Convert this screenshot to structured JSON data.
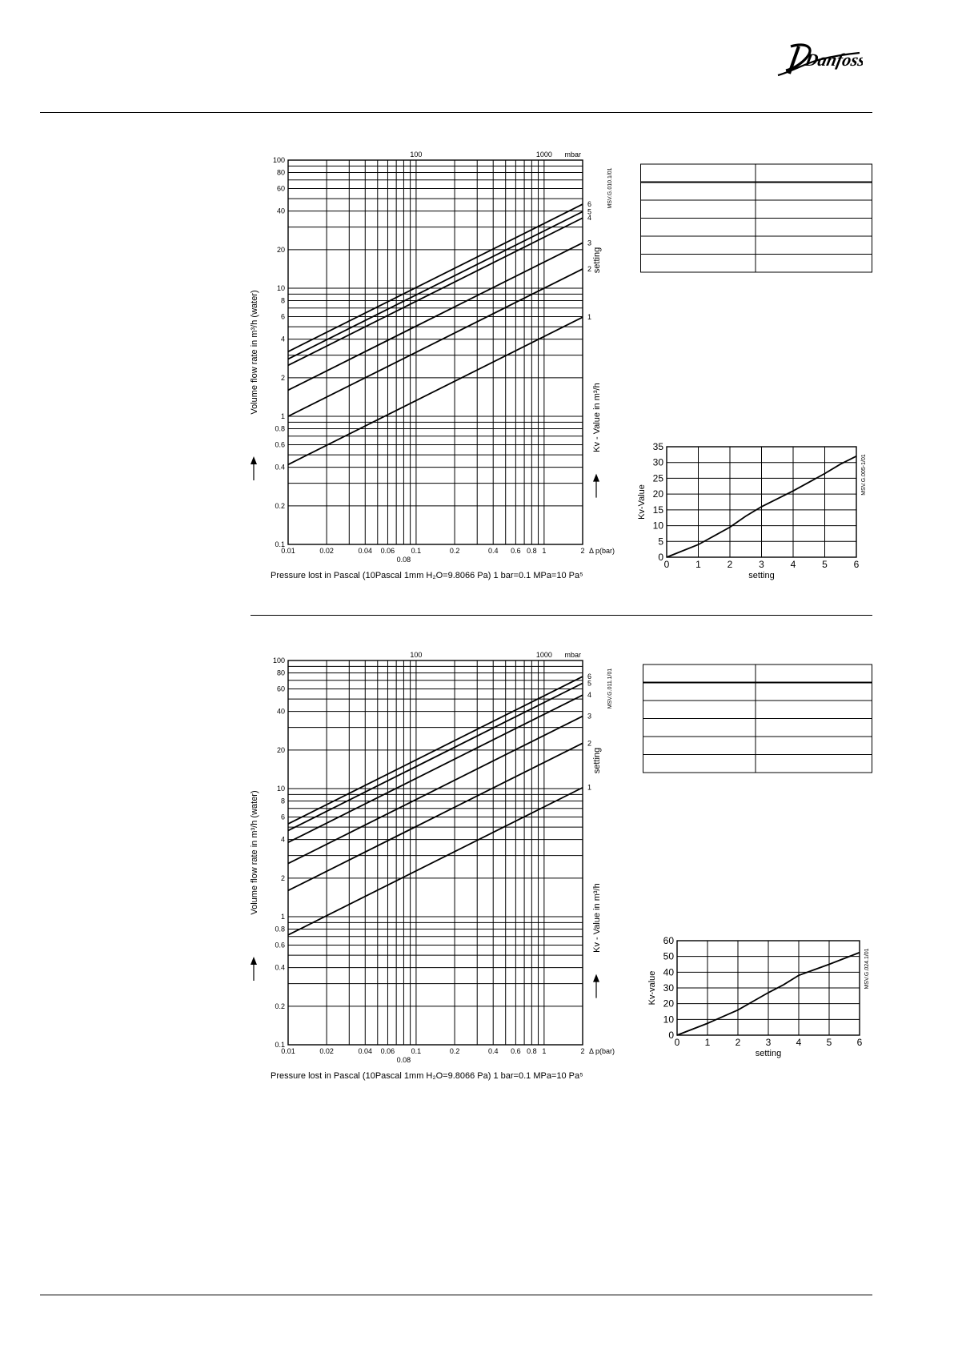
{
  "brand": {
    "logo_text": "Danfoss"
  },
  "chart_data": [
    {
      "type": "line",
      "id": "MSV.G.010.1/01",
      "code": "MSV.G.010.1/01",
      "xscale": "log",
      "yscale": "log",
      "xlim": [
        0.01,
        2
      ],
      "ylim": [
        0.1,
        100
      ],
      "xlabel": "Δ p(bar)",
      "ylabel": "Volume flow rate in m³/h (water)",
      "right_label": "Kv - Value in m³/h",
      "setting_label": "setting",
      "top_axis_unit": "mbar",
      "top_ticks": [
        {
          "x": 0.1,
          "label": "100"
        },
        {
          "x": 1,
          "label": "1000"
        }
      ],
      "x_tick_labels": [
        {
          "x": 0.01,
          "label": "0.01"
        },
        {
          "x": 0.02,
          "label": "0.02"
        },
        {
          "x": 0.04,
          "label": "0.04"
        },
        {
          "x": 0.06,
          "label": "0.06"
        },
        {
          "x": 0.1,
          "label": "0.1"
        },
        {
          "x": 0.2,
          "label": "0.2"
        },
        {
          "x": 0.4,
          "label": "0.4"
        },
        {
          "x": 0.6,
          "label": "0.6"
        },
        {
          "x": 0.8,
          "label": "0.8"
        },
        {
          "x": 1,
          "label": "1"
        },
        {
          "x": 2,
          "label": "2"
        }
      ],
      "x_sub_label": {
        "x": 0.08,
        "label": "0.08"
      },
      "y_tick_labels": [
        {
          "y": 100,
          "label": "100"
        },
        {
          "y": 80,
          "label": "80"
        },
        {
          "y": 60,
          "label": "60"
        },
        {
          "y": 40,
          "label": "40"
        },
        {
          "y": 20,
          "label": "20"
        },
        {
          "y": 10,
          "label": "10"
        },
        {
          "y": 8,
          "label": "8"
        },
        {
          "y": 6,
          "label": "6"
        },
        {
          "y": 4,
          "label": "4"
        },
        {
          "y": 2,
          "label": "2"
        },
        {
          "y": 1,
          "label": "1"
        },
        {
          "y": 0.8,
          "label": "0.8"
        },
        {
          "y": 0.6,
          "label": "0.6"
        },
        {
          "y": 0.4,
          "label": "0.4"
        },
        {
          "y": 0.2,
          "label": "0.2"
        },
        {
          "y": 0.1,
          "label": "0.1"
        }
      ],
      "footnote": "Pressure lost in Pascal (10Pascal 1mm H₂O=9.8066 Pa) 1 bar=0.1 MPa=10 Pa⁵",
      "series": [
        {
          "name": "6",
          "kv": 32
        },
        {
          "name": "5",
          "kv": 28
        },
        {
          "name": "4",
          "kv": 25
        },
        {
          "name": "3",
          "kv": 16
        },
        {
          "name": "2",
          "kv": 10
        },
        {
          "name": "1",
          "kv": 4.2
        }
      ]
    },
    {
      "type": "line",
      "id": "MSV.G.011.1/01",
      "code": "MSV.G.011.1/01",
      "xscale": "log",
      "yscale": "log",
      "xlim": [
        0.01,
        2
      ],
      "ylim": [
        0.1,
        100
      ],
      "xlabel": "Δ p(bar)",
      "ylabel": "Volume flow rate in m³/h (water)",
      "right_label": "Kv - Value in m³/h",
      "setting_label": "setting",
      "top_axis_unit": "mbar",
      "top_ticks": [
        {
          "x": 0.1,
          "label": "100"
        },
        {
          "x": 1,
          "label": "1000"
        }
      ],
      "x_tick_labels": [
        {
          "x": 0.01,
          "label": "0.01"
        },
        {
          "x": 0.02,
          "label": "0.02"
        },
        {
          "x": 0.04,
          "label": "0.04"
        },
        {
          "x": 0.06,
          "label": "0.06"
        },
        {
          "x": 0.1,
          "label": "0.1"
        },
        {
          "x": 0.2,
          "label": "0.2"
        },
        {
          "x": 0.4,
          "label": "0.4"
        },
        {
          "x": 0.6,
          "label": "0.6"
        },
        {
          "x": 0.8,
          "label": "0.8"
        },
        {
          "x": 1,
          "label": "1"
        },
        {
          "x": 2,
          "label": "2"
        }
      ],
      "x_sub_label": {
        "x": 0.08,
        "label": "0.08"
      },
      "y_tick_labels": [
        {
          "y": 100,
          "label": "100"
        },
        {
          "y": 80,
          "label": "80"
        },
        {
          "y": 60,
          "label": "60"
        },
        {
          "y": 40,
          "label": "40"
        },
        {
          "y": 20,
          "label": "20"
        },
        {
          "y": 10,
          "label": "10"
        },
        {
          "y": 8,
          "label": "8"
        },
        {
          "y": 6,
          "label": "6"
        },
        {
          "y": 4,
          "label": "4"
        },
        {
          "y": 2,
          "label": "2"
        },
        {
          "y": 1,
          "label": "1"
        },
        {
          "y": 0.8,
          "label": "0.8"
        },
        {
          "y": 0.6,
          "label": "0.6"
        },
        {
          "y": 0.4,
          "label": "0.4"
        },
        {
          "y": 0.2,
          "label": "0.2"
        },
        {
          "y": 0.1,
          "label": "0.1"
        }
      ],
      "footnote": "Pressure lost in Pascal (10Pascal 1mm H₂O=9.8066 Pa) 1 bar=0.1 MPa=10 Pa⁵",
      "series": [
        {
          "name": "6",
          "kv": 53
        },
        {
          "name": "5",
          "kv": 47
        },
        {
          "name": "4",
          "kv": 38
        },
        {
          "name": "3",
          "kv": 26
        },
        {
          "name": "2",
          "kv": 16
        },
        {
          "name": "1",
          "kv": 7.2
        }
      ]
    },
    {
      "type": "line",
      "id": "MSV.G.005.1/01",
      "code": "MSV.G.005-1/01",
      "xlabel": "setting",
      "ylabel": "Kv-Value",
      "xlim": [
        0,
        6
      ],
      "ylim": [
        0,
        35
      ],
      "xticks": [
        0,
        1,
        2,
        3,
        4,
        5,
        6
      ],
      "yticks": [
        0,
        5,
        10,
        15,
        20,
        25,
        30,
        35
      ],
      "x": [
        0,
        1,
        2,
        2.5,
        3,
        4,
        5,
        5.5,
        6
      ],
      "y": [
        0,
        4,
        9.5,
        13,
        16,
        21,
        26.5,
        29.5,
        32
      ]
    },
    {
      "type": "line",
      "id": "MSV.G.024.1/01",
      "code": "MSV.G.024.1/01",
      "xlabel": "setting",
      "ylabel": "Kv-value",
      "xlim": [
        0,
        6
      ],
      "ylim": [
        0,
        60
      ],
      "xticks": [
        0,
        1,
        2,
        3,
        4,
        5,
        6
      ],
      "yticks": [
        0,
        10,
        20,
        30,
        40,
        50,
        60
      ],
      "x": [
        0,
        1,
        2,
        3,
        3.5,
        4,
        5,
        6
      ],
      "y": [
        0,
        7.5,
        16,
        27,
        32,
        38,
        45,
        52.5
      ]
    }
  ],
  "tables": [
    {
      "rows": 6,
      "cols": 2
    },
    {
      "rows": 6,
      "cols": 2
    }
  ]
}
